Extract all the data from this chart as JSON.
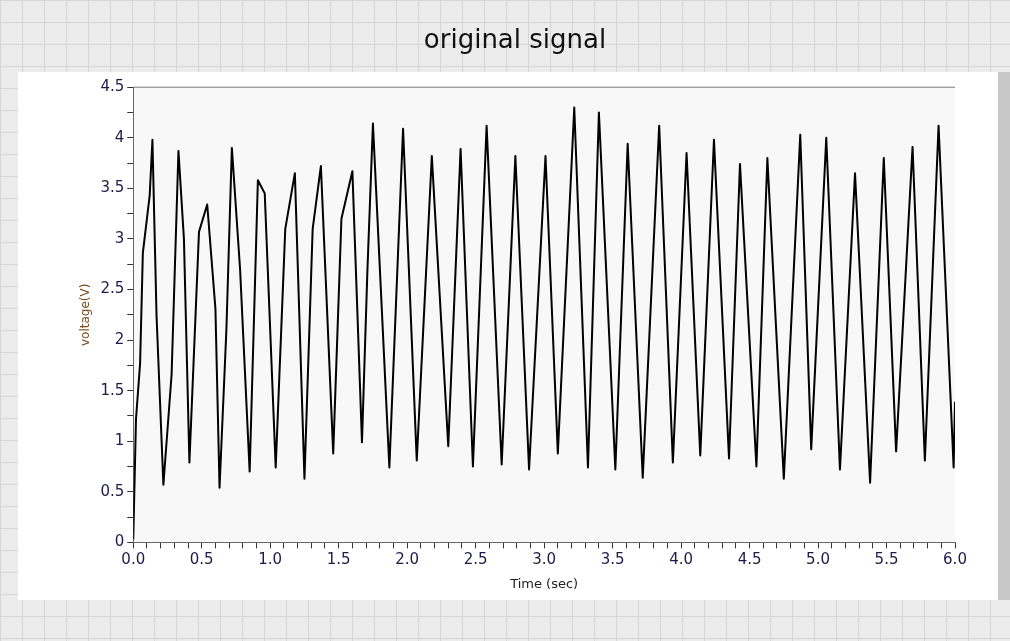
{
  "chart_data": {
    "type": "line",
    "title": "original signal",
    "xlabel": "Time (sec)",
    "ylabel": "voltage(V)",
    "xlim": [
      0,
      6
    ],
    "ylim": [
      0,
      4.5
    ],
    "xticks": [
      {
        "value": 0,
        "label": "0.0"
      },
      {
        "value": 0.1,
        "label": null
      },
      {
        "value": 0.2,
        "label": null
      },
      {
        "value": 0.3,
        "label": null
      },
      {
        "value": 0.4,
        "label": null
      },
      {
        "value": 0.5,
        "label": "0.5"
      },
      {
        "value": 0.6,
        "label": null
      },
      {
        "value": 0.7,
        "label": null
      },
      {
        "value": 0.8,
        "label": null
      },
      {
        "value": 0.9,
        "label": null
      },
      {
        "value": 1,
        "label": "1.0"
      },
      {
        "value": 1.1,
        "label": null
      },
      {
        "value": 1.2,
        "label": null
      },
      {
        "value": 1.3,
        "label": null
      },
      {
        "value": 1.4,
        "label": null
      },
      {
        "value": 1.5,
        "label": "1.5"
      },
      {
        "value": 1.6,
        "label": null
      },
      {
        "value": 1.7,
        "label": null
      },
      {
        "value": 1.8,
        "label": null
      },
      {
        "value": 1.9,
        "label": null
      },
      {
        "value": 2,
        "label": "2.0"
      },
      {
        "value": 2.1,
        "label": null
      },
      {
        "value": 2.2,
        "label": null
      },
      {
        "value": 2.3,
        "label": null
      },
      {
        "value": 2.4,
        "label": null
      },
      {
        "value": 2.5,
        "label": "2.5"
      },
      {
        "value": 2.6,
        "label": null
      },
      {
        "value": 2.7,
        "label": null
      },
      {
        "value": 2.8,
        "label": null
      },
      {
        "value": 2.9,
        "label": null
      },
      {
        "value": 3,
        "label": "3.0"
      },
      {
        "value": 3.1,
        "label": null
      },
      {
        "value": 3.2,
        "label": null
      },
      {
        "value": 3.3,
        "label": null
      },
      {
        "value": 3.4,
        "label": null
      },
      {
        "value": 3.5,
        "label": "3.5"
      },
      {
        "value": 3.6,
        "label": null
      },
      {
        "value": 3.7,
        "label": null
      },
      {
        "value": 3.8,
        "label": null
      },
      {
        "value": 3.9,
        "label": null
      },
      {
        "value": 4,
        "label": "4.0"
      },
      {
        "value": 4.1,
        "label": null
      },
      {
        "value": 4.2,
        "label": null
      },
      {
        "value": 4.3,
        "label": null
      },
      {
        "value": 4.4,
        "label": null
      },
      {
        "value": 4.5,
        "label": "4.5"
      },
      {
        "value": 4.6,
        "label": null
      },
      {
        "value": 4.7,
        "label": null
      },
      {
        "value": 4.8,
        "label": null
      },
      {
        "value": 4.9,
        "label": null
      },
      {
        "value": 5,
        "label": "5.0"
      },
      {
        "value": 5.1,
        "label": null
      },
      {
        "value": 5.2,
        "label": null
      },
      {
        "value": 5.3,
        "label": null
      },
      {
        "value": 5.4,
        "label": null
      },
      {
        "value": 5.5,
        "label": "5.5"
      },
      {
        "value": 5.6,
        "label": null
      },
      {
        "value": 5.7,
        "label": null
      },
      {
        "value": 5.8,
        "label": null
      },
      {
        "value": 5.9,
        "label": null
      },
      {
        "value": 6,
        "label": "6.0"
      }
    ],
    "yticks": [
      0,
      {
        "value": 0.25,
        "label": null
      },
      0.5,
      {
        "value": 0.75,
        "label": null
      },
      1,
      {
        "value": 1.25,
        "label": null
      },
      1.5,
      {
        "value": 1.75,
        "label": null
      },
      2,
      {
        "value": 2.25,
        "label": null
      },
      2.5,
      {
        "value": 2.75,
        "label": null
      },
      3,
      {
        "value": 3.25,
        "label": null
      },
      3.5,
      {
        "value": 3.75,
        "label": null
      },
      4,
      {
        "value": 4.25,
        "label": null
      },
      4.5
    ],
    "grid": false,
    "legend": false,
    "marker": "none",
    "line_style": "solid",
    "x": [
      0,
      0.02,
      0.05,
      0.07,
      0.12,
      0.14,
      0.17,
      0.22,
      0.28,
      0.33,
      0.37,
      0.41,
      0.48,
      0.54,
      0.6,
      0.63,
      0.68,
      0.72,
      0.78,
      0.85,
      0.91,
      0.96,
      1.04,
      1.11,
      1.18,
      1.25,
      1.31,
      1.37,
      1.46,
      1.52,
      1.6,
      1.67,
      1.71,
      1.75,
      1.87,
      1.97,
      2.07,
      2.18,
      2.3,
      2.39,
      2.48,
      2.58,
      2.69,
      2.79,
      2.89,
      3.01,
      3.1,
      3.22,
      3.32,
      3.4,
      3.52,
      3.61,
      3.72,
      3.84,
      3.94,
      4.04,
      4.14,
      4.24,
      4.35,
      4.43,
      4.55,
      4.63,
      4.75,
      4.87,
      4.95,
      5.06,
      5.16,
      5.27,
      5.38,
      5.48,
      5.57,
      5.69,
      5.78,
      5.88,
      5.99,
      6
    ],
    "series": [
      {
        "color": "#000000",
        "values": [
          0.03,
          1.22,
          1.77,
          2.86,
          3.43,
          3.98,
          2.24,
          0.57,
          1.66,
          3.87,
          3.0,
          0.79,
          3.07,
          3.34,
          2.31,
          0.54,
          2.1,
          3.9,
          2.7,
          0.7,
          3.58,
          3.45,
          0.74,
          3.1,
          3.65,
          0.63,
          3.1,
          3.72,
          0.88,
          3.2,
          3.67,
          0.99,
          2.7,
          4.14,
          0.74,
          4.09,
          0.81,
          3.82,
          0.95,
          3.89,
          0.75,
          4.12,
          0.77,
          3.82,
          0.72,
          3.82,
          0.88,
          4.3,
          0.74,
          4.25,
          0.72,
          3.94,
          0.64,
          4.12,
          0.79,
          3.85,
          0.86,
          3.98,
          0.83,
          3.74,
          0.75,
          3.8,
          0.63,
          4.03,
          0.92,
          4.0,
          0.72,
          3.65,
          0.59,
          3.8,
          0.9,
          3.91,
          0.81,
          4.12,
          0.74,
          1.39
        ]
      }
    ]
  }
}
